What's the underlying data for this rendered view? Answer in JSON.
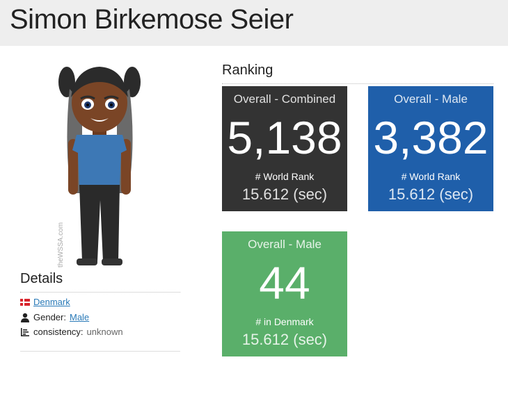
{
  "header": {
    "name": "Simon Birkemose Seier"
  },
  "avatar": {
    "watermark": "theWSSA.com"
  },
  "details": {
    "title": "Details",
    "country": "Denmark",
    "gender_label": "Gender:",
    "gender_value": "Male",
    "consistency_label": "consistency:",
    "consistency_value": "unknown"
  },
  "ranking": {
    "title": "Ranking",
    "cards": [
      {
        "category": "Overall - Combined",
        "rank": "5,138",
        "label": "# World Rank",
        "time": "15.612 (sec)",
        "color": "#333333"
      },
      {
        "category": "Overall - Male",
        "rank": "3,382",
        "label": "# World Rank",
        "time": "15.612 (sec)",
        "color": "#1f5faa"
      },
      {
        "category": "Overall - Male",
        "rank": "44",
        "label": "# in Denmark",
        "time": "15.612 (sec)",
        "color": "#5aaf6a"
      }
    ]
  }
}
